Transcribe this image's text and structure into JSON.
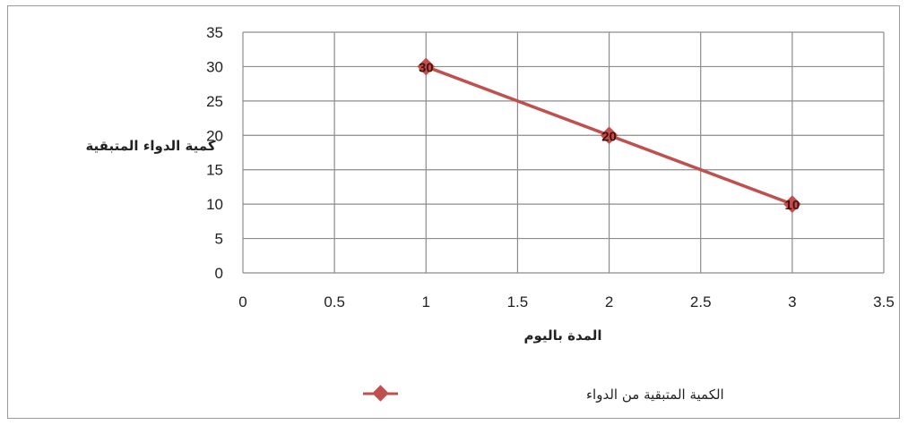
{
  "chart_data": {
    "type": "line",
    "title": "",
    "xlabel": "المدة باليوم",
    "ylabel": "كمية الدواء المتبقية",
    "xlim": [
      0,
      3.5
    ],
    "ylim": [
      0,
      35
    ],
    "x_ticks": [
      "0",
      "0.5",
      "1",
      "1.5",
      "2",
      "2.5",
      "3",
      "3.5"
    ],
    "y_ticks": [
      "0",
      "5",
      "10",
      "15",
      "20",
      "25",
      "30",
      "35"
    ],
    "grid": true,
    "legend_position": "bottom",
    "series": [
      {
        "name": "الكمية المتبقية من الدواء",
        "color": "#c0504d",
        "marker": "diamond",
        "points": [
          {
            "x": 1,
            "y": 30,
            "label": "30"
          },
          {
            "x": 2,
            "y": 20,
            "label": "20"
          },
          {
            "x": 3,
            "y": 10,
            "label": "10"
          }
        ]
      }
    ]
  }
}
